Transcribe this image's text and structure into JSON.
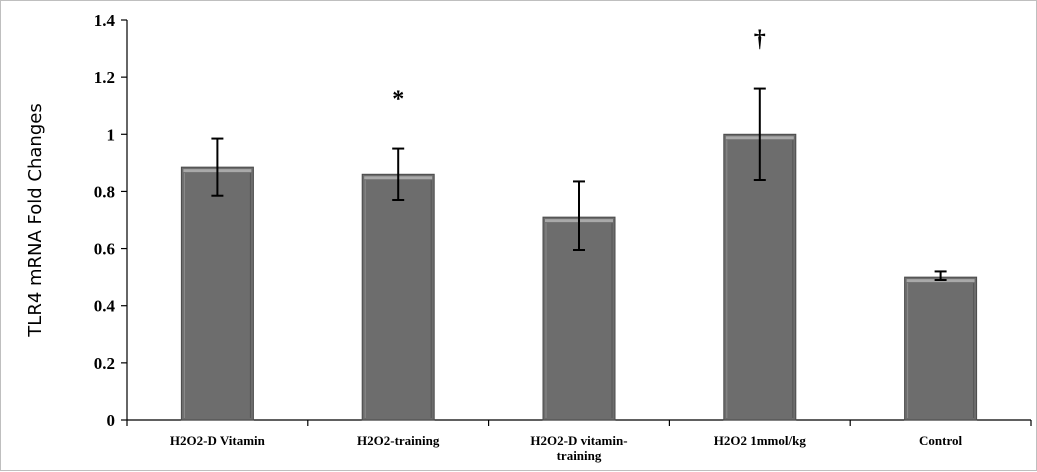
{
  "chart_data": {
    "type": "bar",
    "title": "",
    "xlabel": "",
    "ylabel": "TLR4 mRNA Fold Changes",
    "ylim": [
      0,
      1.4
    ],
    "yticks": [
      "0",
      "0.2",
      "0.4",
      "0.6",
      "0.8",
      "1",
      "1.2",
      "1.4"
    ],
    "categories": [
      [
        "H2O2-D Vitamin"
      ],
      [
        "H2O2-training"
      ],
      [
        "H2O2-D vitamin-",
        "training"
      ],
      [
        "H2O2 1mmol/kg"
      ],
      [
        "Control"
      ]
    ],
    "values": [
      0.885,
      0.86,
      0.71,
      1.0,
      0.5
    ],
    "error_low": [
      0.785,
      0.77,
      0.595,
      0.84,
      0.49
    ],
    "error_high": [
      0.985,
      0.95,
      0.835,
      1.16,
      0.52
    ],
    "annotations": [
      "",
      "*",
      "",
      "†",
      ""
    ],
    "bar_color": "#6d6d6d",
    "grid": false,
    "legend": "none"
  }
}
